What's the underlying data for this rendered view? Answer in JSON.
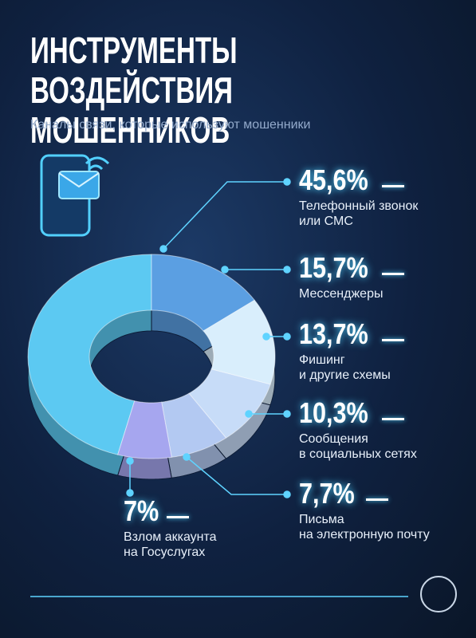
{
  "chart_data": {
    "type": "pie",
    "donut": true,
    "title": "ИНСТРУМЕНТЫ ВОЗДЕЙСТВИЯ МОШЕННИКОВ",
    "subtitle": "Каналы связи, которые используют мошенники",
    "categories": [
      "Телефонный звонок\nили СМС",
      "Мессенджеры",
      "Фишинг\nи другие схемы",
      "Сообщения\nв социальных сетях",
      "Письма\nна электронную почту",
      "Взлом аккаунта\nна Госуслугах"
    ],
    "values": [
      45.6,
      15.7,
      13.7,
      10.3,
      7.7,
      7
    ],
    "value_labels": [
      "45,6%",
      "15,7%",
      "13,7%",
      "10,3%",
      "7,7%",
      "7%"
    ],
    "colors": [
      "#5cc9f2",
      "#5b9fe2",
      "#d9eefc",
      "#c7dcf8",
      "#b3c9f2",
      "#a6a6ef"
    ]
  }
}
